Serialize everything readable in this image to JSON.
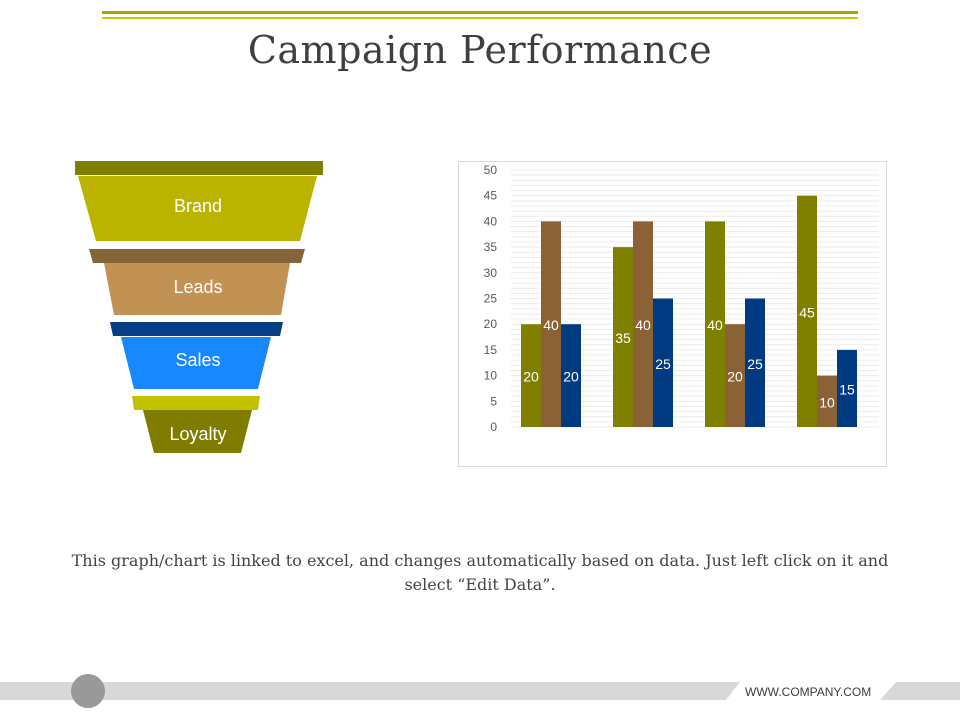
{
  "slide": {
    "title": "Campaign Performance",
    "caption": "This graph/chart is linked to excel, and changes automatically based on data. Just left click on it and select “Edit Data”.",
    "footer_url": "WWW.COMPANY.COM"
  },
  "funnel": {
    "stages": [
      {
        "label": "Brand",
        "color": "#bab400",
        "cap_color": "#7f7f00"
      },
      {
        "label": "Leads",
        "color": "#c29255",
        "cap_color": "#85643a"
      },
      {
        "label": "Sales",
        "color": "#1788ff",
        "cap_color": "#073f86"
      },
      {
        "label": "Loyalty",
        "color": "#807c00",
        "cap_color": "#c2c200"
      }
    ]
  },
  "chart_data": {
    "type": "bar",
    "categories": [
      "",
      "",
      "",
      ""
    ],
    "series": [
      {
        "values": [
          20,
          35,
          40,
          45
        ],
        "color": "#808000"
      },
      {
        "values": [
          40,
          40,
          20,
          10
        ],
        "color": "#8b6236"
      },
      {
        "values": [
          20,
          25,
          25,
          15
        ],
        "color": "#003a80"
      }
    ],
    "ylim": [
      0,
      50
    ],
    "yticks": [
      0,
      5,
      10,
      15,
      20,
      25,
      30,
      35,
      40,
      45,
      50
    ],
    "title": "",
    "xlabel": "",
    "ylabel": "",
    "grid": true,
    "legend": "none",
    "data_labels": true
  }
}
